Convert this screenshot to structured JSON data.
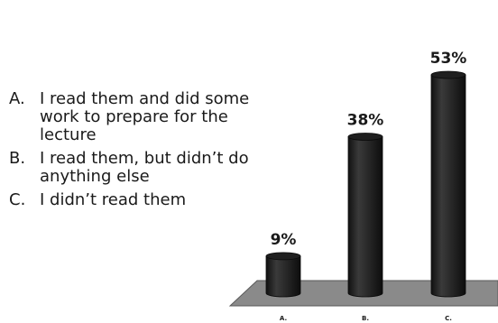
{
  "options": [
    {
      "letter": "A.",
      "text": "I read them and did some work to prepare for the lecture"
    },
    {
      "letter": "B.",
      "text": "I read them, but didn’t do anything else"
    },
    {
      "letter": "C.",
      "text": "I didn’t read them"
    }
  ],
  "chart_data": {
    "type": "bar",
    "categories": [
      "A.",
      "B.",
      "C."
    ],
    "values": [
      9,
      38,
      53
    ],
    "value_labels": [
      "9%",
      "38%",
      "53%"
    ],
    "ylim": [
      0,
      53
    ],
    "grid": false,
    "style": "3d-cylinder",
    "colors": {
      "bar": "#2b2b2b",
      "floor": "#8a8a8a"
    }
  }
}
